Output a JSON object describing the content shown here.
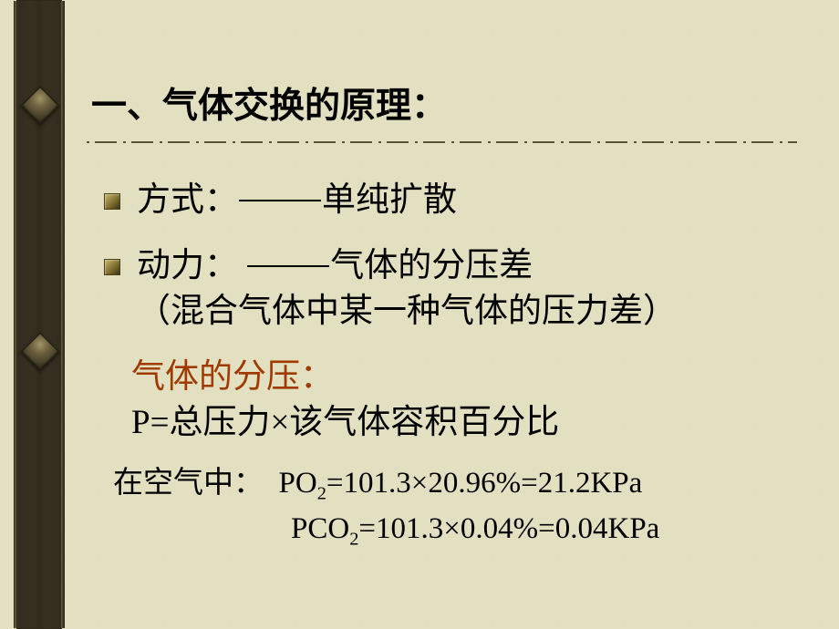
{
  "title": "一、气体交换的原理：",
  "items": {
    "method": {
      "label": "方式：",
      "value": "单纯扩散"
    },
    "power": {
      "label": "动力： ",
      "value": "气体的分压差",
      "note": "（混合气体中某一种气体的压力差）"
    }
  },
  "partialPressure": {
    "heading": "气体的分压：",
    "headingColor": "#a03a00",
    "formula": "P=总压力×该气体容积百分比"
  },
  "air": {
    "prefix": "在空气中：",
    "po2_label": "PO",
    "po2_sub": "2",
    "po2_eq": "=101.3×20.96%=21.2KPa",
    "pco2_label": "PCO",
    "pco2_sub": "2",
    "pco2_eq": "=101.3×0.04%=0.04KPa"
  },
  "style": {
    "background": "#e2e0c0",
    "textColor": "#000000",
    "highlightColor": "#a03a00",
    "titleFontSize": 39,
    "bodyFontSize": 37,
    "airFontSize": 33,
    "bulletColor1": "#c8b86a",
    "bulletColor2": "#3c3410",
    "railColor": "#4a432e",
    "dividerColor": "#5a5436"
  }
}
